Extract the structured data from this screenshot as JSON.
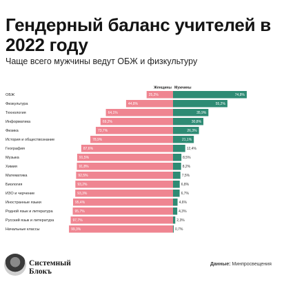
{
  "header": {
    "title": "Гендерный баланс учителей в 2022 году",
    "subtitle": "Чаще всего мужчины ведут ОБЖ и физкультуру"
  },
  "footer": {
    "brand_line1": "Системный",
    "brand_line2": "Блокъ",
    "source_label": "Данные:",
    "source_value": "Минпросвещения"
  },
  "colors": {
    "women": "#ef8591",
    "men": "#2e8b74"
  },
  "chart_data": {
    "type": "bar",
    "orientation": "horizontal-diverging",
    "legend": [
      "Женщины",
      "Мужчины"
    ],
    "categories": [
      "ОБЖ",
      "Физкультура",
      "Технология",
      "Информатика",
      "Физика",
      "История и обществознание",
      "География",
      "Музыка",
      "Химия",
      "Математика",
      "Биология",
      "ИЗО и черчение",
      "Иностранные языки",
      "Родной язык и литература",
      "Русский язык и литература",
      "Начальные классы"
    ],
    "series": [
      {
        "name": "Женщины",
        "values": [
          25.2,
          44.8,
          64.1,
          69.2,
          73.7,
          78.9,
          87.6,
          91.5,
          91.8,
          92.5,
          93.2,
          93.3,
          95.4,
          95.7,
          97.7,
          99.3
        ],
        "labels": [
          "25,2%",
          "44,8%",
          "64,1%",
          "69,2%",
          "73,7%",
          "78,9%",
          "87,6%",
          "91,5%",
          "91,8%",
          "92,5%",
          "93,2%",
          "93,3%",
          "95,4%",
          "95,7%",
          "97,7%",
          "99,3%"
        ]
      },
      {
        "name": "Мужчины",
        "values": [
          74.8,
          55.2,
          35.9,
          30.8,
          26.3,
          21.1,
          12.4,
          8.5,
          8.2,
          7.5,
          6.8,
          6.7,
          4.6,
          4.3,
          2.3,
          0.7
        ],
        "labels": [
          "74,8%",
          "55,2%",
          "35,9%",
          "30,8%",
          "26,3%",
          "21,1%",
          "12,4%",
          "8,5%",
          "8,2%",
          "7,5%",
          "6,8%",
          "6,7%",
          "4,6%",
          "4,3%",
          "2,3%",
          "0,7%"
        ]
      }
    ],
    "xlim": [
      0,
      100
    ]
  }
}
